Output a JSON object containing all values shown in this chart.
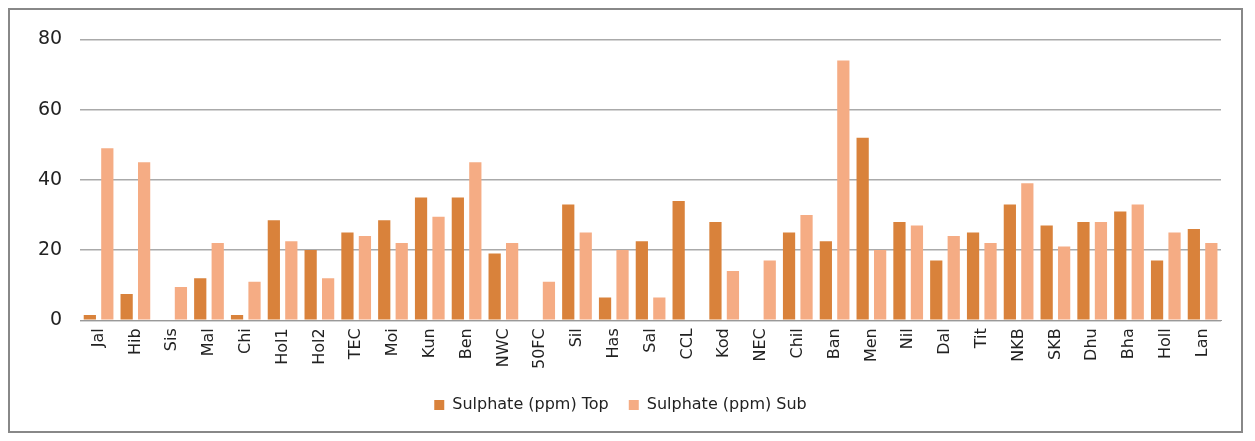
{
  "chart_data": {
    "type": "bar",
    "categories": [
      "Jal",
      "Hib",
      "Sis",
      "Mal",
      "Chi",
      "Hol1",
      "Hol2",
      "TEC",
      "Moi",
      "Kun",
      "Ben",
      "NWC",
      "50FC",
      "Sil",
      "Has",
      "Sal",
      "CCL",
      "Kod",
      "NEC",
      "Chil",
      "Ban",
      "Men",
      "Nil",
      "Dal",
      "Tit",
      "NKB",
      "SKB",
      "Dhu",
      "Bha",
      "Holl",
      "Lan"
    ],
    "series": [
      {
        "name": "Sulphate (ppm) Top",
        "color": "#d9823b",
        "values": [
          1.5,
          7.5,
          null,
          12,
          1.5,
          28.5,
          20,
          25,
          28.5,
          35,
          35,
          19,
          null,
          33,
          6.5,
          22.5,
          34,
          28,
          null,
          25,
          22.5,
          52,
          28,
          17,
          25,
          33,
          27,
          28,
          31,
          17,
          26
        ]
      },
      {
        "name": "Sulphate (ppm) Sub",
        "color": "#f5ac84",
        "values": [
          49,
          45,
          9.5,
          22,
          11,
          22.5,
          12,
          24,
          22,
          29.5,
          45,
          22,
          11,
          25,
          20,
          6.5,
          null,
          14,
          17,
          30,
          74,
          20,
          27,
          24,
          22,
          39,
          21,
          28,
          33,
          25,
          22
        ]
      }
    ],
    "ylim": [
      0,
      80
    ],
    "yticks": [
      0,
      20,
      40,
      60,
      80
    ],
    "grid": "y",
    "legend": "bottom"
  }
}
